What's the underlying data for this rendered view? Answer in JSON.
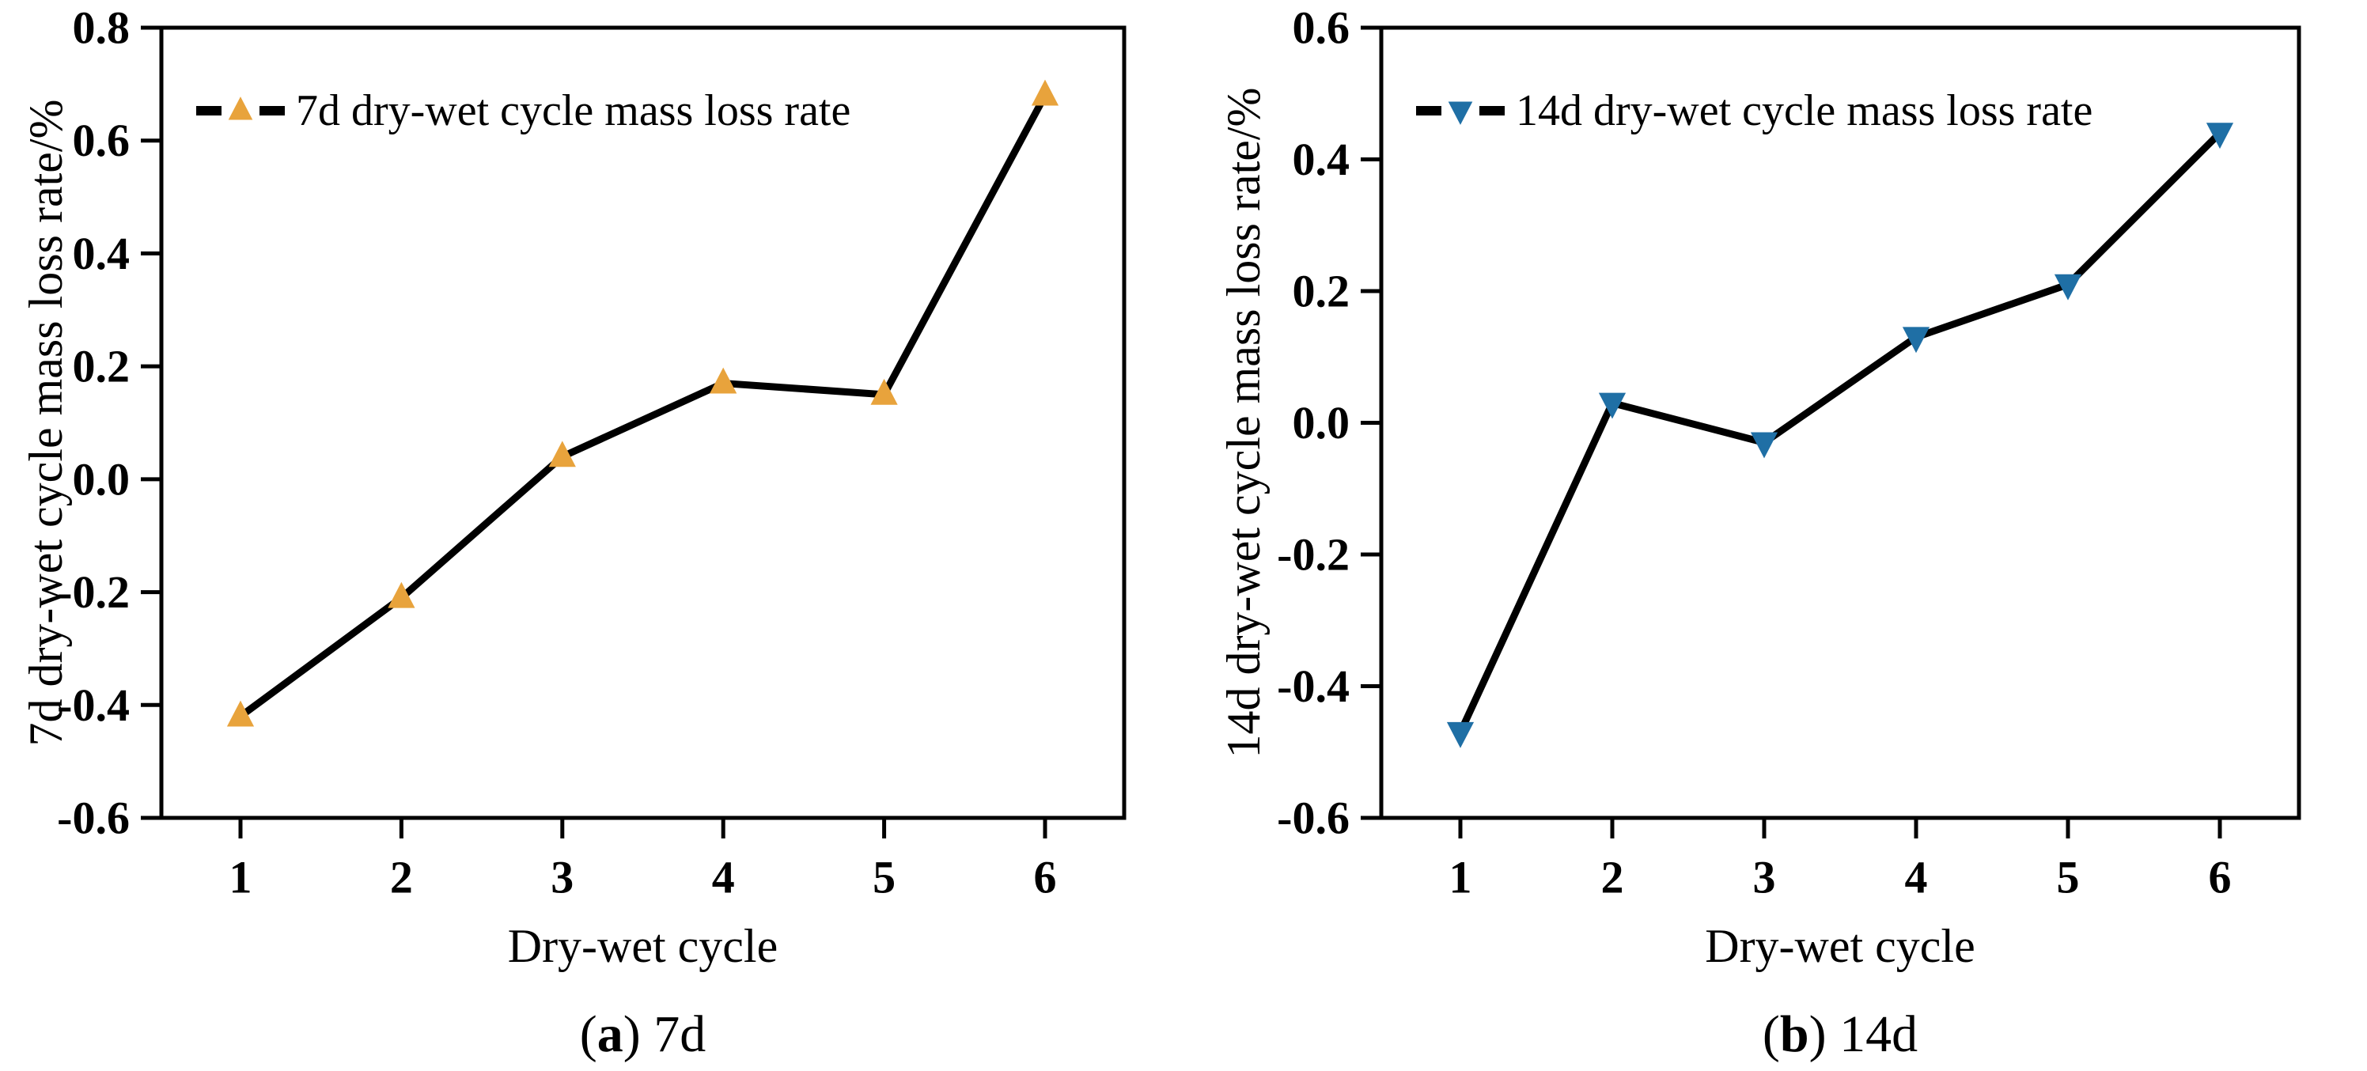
{
  "page": {
    "background": "#FFFFFF",
    "text_color": "#000000"
  },
  "chart_data": [
    {
      "type": "line",
      "panel": "a",
      "x": [
        1,
        2,
        3,
        4,
        5,
        6
      ],
      "series": [
        {
          "name": "7d dry-wet cycle mass loss rate",
          "values": [
            -0.42,
            -0.21,
            0.04,
            0.17,
            0.15,
            0.68
          ]
        }
      ],
      "title": "",
      "xlabel": "Dry-wet cycle",
      "ylabel": "7d dry-wet cycle mass loss rate/%",
      "ylim": [
        -0.6,
        0.8
      ],
      "yticks": [
        0.8,
        0.6,
        0.4,
        0.2,
        0.0,
        -0.2,
        -0.4,
        -0.6
      ],
      "xticks": [
        1,
        2,
        3,
        4,
        5,
        6
      ],
      "grid": false,
      "legend_position": "top-left",
      "marker": "triangle-up",
      "marker_color": "#E8A33C",
      "line_color": "#000000",
      "caption": {
        "prefix": "(",
        "letter": "a",
        "suffix": ") 7d"
      }
    },
    {
      "type": "line",
      "panel": "b",
      "x": [
        1,
        2,
        3,
        4,
        5,
        6
      ],
      "series": [
        {
          "name": "14d dry-wet cycle mass loss rate",
          "values": [
            -0.47,
            0.03,
            -0.03,
            0.13,
            0.21,
            0.44
          ]
        }
      ],
      "title": "",
      "xlabel": "Dry-wet cycle",
      "ylabel": "14d dry-wet cycle mass loss rate/%",
      "ylim": [
        -0.6,
        0.6
      ],
      "yticks": [
        0.6,
        0.4,
        0.2,
        0.0,
        -0.2,
        -0.4,
        -0.6
      ],
      "xticks": [
        1,
        2,
        3,
        4,
        5,
        6
      ],
      "grid": false,
      "legend_position": "top-left",
      "marker": "triangle-down",
      "marker_color": "#1F6FA5",
      "line_color": "#000000",
      "caption": {
        "prefix": "(",
        "letter": "b",
        "suffix": ") 14d"
      }
    }
  ]
}
